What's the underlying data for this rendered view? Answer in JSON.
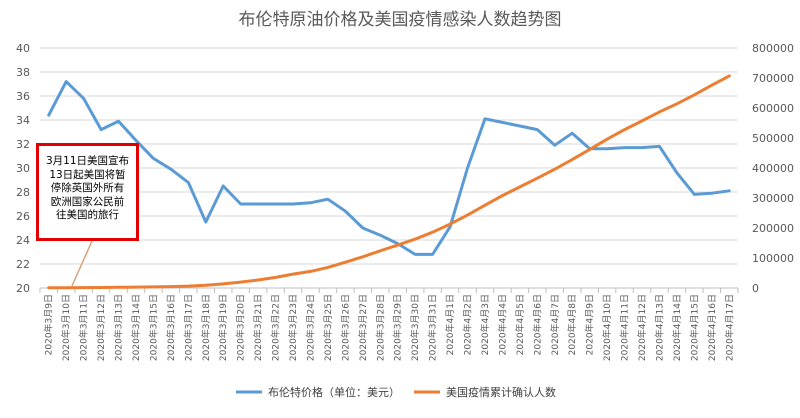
{
  "chart_data": {
    "type": "line",
    "title": "布伦特原油价格及美国疫情感染人数趋势图",
    "categories": [
      "2020年3月9日",
      "2020年3月10日",
      "2020年3月11日",
      "2020年3月12日",
      "2020年3月13日",
      "2020年3月14日",
      "2020年3月15日",
      "2020年3月16日",
      "2020年3月17日",
      "2020年3月18日",
      "2020年3月19日",
      "2020年3月20日",
      "2020年3月21日",
      "2020年3月22日",
      "2020年3月23日",
      "2020年3月24日",
      "2020年3月25日",
      "2020年3月26日",
      "2020年3月27日",
      "2020年3月28日",
      "2020年3月29日",
      "2020年3月30日",
      "2020年3月31日",
      "2020年4月1日",
      "2020年4月2日",
      "2020年4月3日",
      "2020年4月4日",
      "2020年4月5日",
      "2020年4月6日",
      "2020年4月7日",
      "2020年4月8日",
      "2020年4月9日",
      "2020年4月10日",
      "2020年4月11日",
      "2020年4月12日",
      "2020年4月13日",
      "2020年4月14日",
      "2020年4月15日",
      "2020年4月16日",
      "2020年4月17日"
    ],
    "y_left": {
      "min": 20,
      "max": 40,
      "step": 2,
      "ticks": [
        "20",
        "22",
        "24",
        "26",
        "28",
        "30",
        "32",
        "34",
        "36",
        "38",
        "40"
      ]
    },
    "y_right": {
      "min": 0,
      "max": 800000,
      "step": 100000,
      "ticks": [
        "0",
        "100000",
        "200000",
        "300000",
        "400000",
        "500000",
        "600000",
        "700000",
        "800000"
      ]
    },
    "series": [
      {
        "name": "布伦特价格（单位：美元）",
        "axis": "left",
        "color": "#5b9bd5",
        "values": [
          34.4,
          37.2,
          35.8,
          33.2,
          33.9,
          32.3,
          30.8,
          29.9,
          28.8,
          25.5,
          28.5,
          27.0,
          27.0,
          27.0,
          27.0,
          27.1,
          27.4,
          26.4,
          25.0,
          24.4,
          23.7,
          22.8,
          22.8,
          25.1,
          30.0,
          34.1,
          33.8,
          33.5,
          33.2,
          31.9,
          32.9,
          31.6,
          31.6,
          31.7,
          31.7,
          31.8,
          29.6,
          27.8,
          27.9,
          28.1
        ]
      },
      {
        "name": "美国疫情累计确认人数",
        "axis": "right",
        "color": "#ed7d31",
        "values": [
          600,
          800,
          1200,
          1600,
          2200,
          3000,
          3800,
          4600,
          6500,
          9400,
          13700,
          19800,
          26700,
          35200,
          46500,
          55200,
          68600,
          86000,
          104000,
          124000,
          143000,
          163000,
          186000,
          213000,
          243000,
          276000,
          308000,
          337000,
          366000,
          396000,
          428000,
          462000,
          496000,
          528000,
          557000,
          587000,
          614000,
          644000,
          676000,
          707000
        ]
      }
    ],
    "legend": {
      "position": "bottom"
    },
    "grid": {
      "horizontal": true
    },
    "annotation": {
      "lines": [
        "3月11日美国宣布",
        "13日起美国将暂",
        "停除英国外所有",
        "欧洲国家公民前",
        "往美国的旅行"
      ],
      "border_color": "#e00000",
      "pointer_color": "#d9a37a"
    }
  }
}
